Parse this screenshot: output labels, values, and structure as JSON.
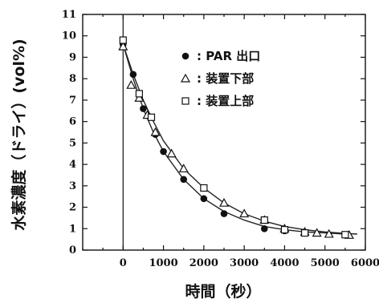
{
  "chart_data": {
    "type": "scatter",
    "xlabel": "時間（秒）",
    "ylabel": "水素濃度（ドライ）(vol%)",
    "xlim": [
      -1000,
      6000
    ],
    "ylim": [
      0,
      11
    ],
    "xticks": [
      0,
      1000,
      2000,
      3000,
      4000,
      5000,
      6000
    ],
    "xtick_labels": [
      "0",
      "1000",
      "2000",
      "3000",
      "4000",
      "5000",
      "6000"
    ],
    "yticks": [
      0,
      1,
      2,
      3,
      4,
      5,
      6,
      7,
      8,
      9,
      10,
      11
    ],
    "ytick_labels": [
      "0",
      "1",
      "2",
      "3",
      "4",
      "5",
      "6",
      "7",
      "8",
      "9",
      "10",
      "11"
    ],
    "grid": false,
    "legend_position": "top-right",
    "series": [
      {
        "name": "PAR 出口",
        "marker": "filled-circle",
        "legend_symbol": "●",
        "x": [
          0,
          250,
          500,
          800,
          1000,
          1500,
          2000,
          2500,
          3500,
          4000
        ],
        "y": [
          9.6,
          8.2,
          6.6,
          5.4,
          4.6,
          3.3,
          2.4,
          1.7,
          1.0,
          0.9
        ]
      },
      {
        "name": "装置下部",
        "marker": "triangle",
        "legend_symbol": "△",
        "x": [
          0,
          200,
          400,
          600,
          800,
          1200,
          1500,
          2500,
          3000,
          3500,
          4000,
          4500,
          4800,
          5100,
          5600
        ],
        "y": [
          9.5,
          7.7,
          7.1,
          6.3,
          5.5,
          4.5,
          3.8,
          2.2,
          1.7,
          1.4,
          1.0,
          0.85,
          0.8,
          0.75,
          0.7
        ]
      },
      {
        "name": "装置上部",
        "marker": "open-square",
        "legend_symbol": "□",
        "x": [
          0,
          400,
          700,
          2000,
          3500,
          4000,
          4500,
          5500
        ],
        "y": [
          9.8,
          7.3,
          6.2,
          2.9,
          1.4,
          0.95,
          0.8,
          0.72
        ]
      }
    ],
    "fit_curves": [
      {
        "for": "PAR 出口",
        "x": [
          0,
          250,
          500,
          750,
          1000,
          1500,
          2000,
          2500,
          3000,
          3500,
          4000,
          4500,
          5000,
          5500
        ],
        "y": [
          9.6,
          8.0,
          6.6,
          5.5,
          4.6,
          3.3,
          2.4,
          1.8,
          1.4,
          1.1,
          0.95,
          0.85,
          0.8,
          0.75
        ]
      },
      {
        "for": "装置下部 / 装置上部",
        "x": [
          0,
          250,
          500,
          750,
          1000,
          1500,
          2000,
          2500,
          3000,
          3500,
          4000,
          4500,
          5000,
          5500,
          5800
        ],
        "y": [
          9.6,
          8.2,
          7.0,
          6.0,
          5.1,
          3.8,
          2.9,
          2.2,
          1.7,
          1.35,
          1.1,
          0.95,
          0.85,
          0.78,
          0.75
        ]
      }
    ]
  }
}
